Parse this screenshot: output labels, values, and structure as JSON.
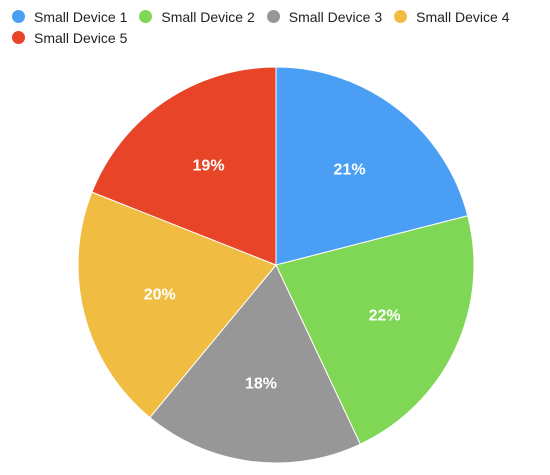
{
  "chart_data": {
    "type": "pie",
    "title": "",
    "legend_position": "top-left",
    "categories": [
      "Small Device 1",
      "Small Device 2",
      "Small Device 3",
      "Small Device 4",
      "Small Device 5"
    ],
    "values": [
      21,
      22,
      18,
      20,
      19
    ],
    "labels": [
      "21%",
      "22%",
      "18%",
      "20%",
      "19%"
    ],
    "colors": [
      "#4a9ff5",
      "#80d655",
      "#979797",
      "#f0bd42",
      "#e84428"
    ]
  }
}
